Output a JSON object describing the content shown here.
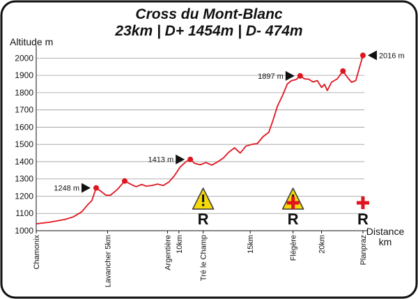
{
  "title_line1": "Cross du Mont-Blanc",
  "title_line2": "23km | D+ 1454m | D- 474m",
  "chart_data": {
    "type": "line",
    "ylabel": "Altitude m",
    "xlabel": "Distance",
    "xlabel_unit": "km",
    "ylim": [
      1000,
      2050
    ],
    "xlim": [
      0,
      23
    ],
    "yticks": [
      1000,
      1100,
      1200,
      1300,
      1400,
      1500,
      1600,
      1700,
      1800,
      1900,
      2000
    ],
    "xticks": [
      {
        "x": 0,
        "label": "Chamonix"
      },
      {
        "x": 5,
        "label": "Lavancher 5km"
      },
      {
        "x": 9.2,
        "label": "Argentière"
      },
      {
        "x": 10,
        "label": "10km"
      },
      {
        "x": 11.7,
        "label": "Tré le Champ"
      },
      {
        "x": 15,
        "label": "15km"
      },
      {
        "x": 18,
        "label": "Flégère"
      },
      {
        "x": 20,
        "label": "20km"
      },
      {
        "x": 22.9,
        "label": "Planpraz"
      }
    ],
    "grid": true,
    "series": [
      {
        "color": "#e0141e",
        "points": [
          [
            0,
            1040
          ],
          [
            1,
            1050
          ],
          [
            2,
            1065
          ],
          [
            2.6,
            1080
          ],
          [
            3.2,
            1110
          ],
          [
            3.6,
            1150
          ],
          [
            3.9,
            1175
          ],
          [
            4.2,
            1248
          ],
          [
            4.5,
            1230
          ],
          [
            4.9,
            1205
          ],
          [
            5.2,
            1205
          ],
          [
            5.7,
            1240
          ],
          [
            6.2,
            1288
          ],
          [
            6.6,
            1270
          ],
          [
            7,
            1255
          ],
          [
            7.4,
            1268
          ],
          [
            7.7,
            1258
          ],
          [
            8.1,
            1262
          ],
          [
            8.5,
            1270
          ],
          [
            8.9,
            1262
          ],
          [
            9.3,
            1282
          ],
          [
            9.7,
            1320
          ],
          [
            10.1,
            1370
          ],
          [
            10.5,
            1400
          ],
          [
            10.8,
            1413
          ],
          [
            11.1,
            1390
          ],
          [
            11.5,
            1382
          ],
          [
            11.9,
            1395
          ],
          [
            12.3,
            1380
          ],
          [
            12.7,
            1398
          ],
          [
            13.1,
            1420
          ],
          [
            13.5,
            1455
          ],
          [
            13.9,
            1480
          ],
          [
            14.3,
            1450
          ],
          [
            14.7,
            1490
          ],
          [
            15.1,
            1500
          ],
          [
            15.5,
            1505
          ],
          [
            15.9,
            1545
          ],
          [
            16.3,
            1570
          ],
          [
            16.6,
            1640
          ],
          [
            16.9,
            1720
          ],
          [
            17.3,
            1790
          ],
          [
            17.6,
            1850
          ],
          [
            17.9,
            1870
          ],
          [
            18.2,
            1875
          ],
          [
            18.5,
            1897
          ],
          [
            18.8,
            1880
          ],
          [
            19.1,
            1878
          ],
          [
            19.4,
            1862
          ],
          [
            19.7,
            1870
          ],
          [
            20,
            1830
          ],
          [
            20.2,
            1848
          ],
          [
            20.4,
            1812
          ],
          [
            20.7,
            1860
          ],
          [
            21.1,
            1880
          ],
          [
            21.5,
            1925
          ],
          [
            21.8,
            1890
          ],
          [
            22.1,
            1860
          ],
          [
            22.4,
            1870
          ],
          [
            22.9,
            2016
          ]
        ],
        "markers": [
          [
            4.2,
            1248
          ],
          [
            6.2,
            1288
          ],
          [
            10.8,
            1413
          ],
          [
            18.5,
            1897
          ],
          [
            21.5,
            1925
          ],
          [
            22.9,
            2016
          ]
        ]
      }
    ],
    "annotations": [
      {
        "x": 4.2,
        "y": 1248,
        "text": "1248 m",
        "side": "left"
      },
      {
        "x": 10.8,
        "y": 1413,
        "text": "1413 m",
        "side": "left"
      },
      {
        "x": 18.5,
        "y": 1897,
        "text": "1897 m",
        "side": "left"
      },
      {
        "x": 22.9,
        "y": 2016,
        "text": "2016 m",
        "side": "right"
      }
    ],
    "warning_signs": [
      {
        "x": 11.7
      },
      {
        "x": 18.0
      }
    ],
    "aid_crosses": [
      {
        "x": 18.0
      },
      {
        "x": 22.9
      }
    ],
    "r_markers": [
      {
        "x": 11.7,
        "text": "R"
      },
      {
        "x": 18.0,
        "text": "R"
      },
      {
        "x": 22.9,
        "text": "R"
      }
    ]
  }
}
